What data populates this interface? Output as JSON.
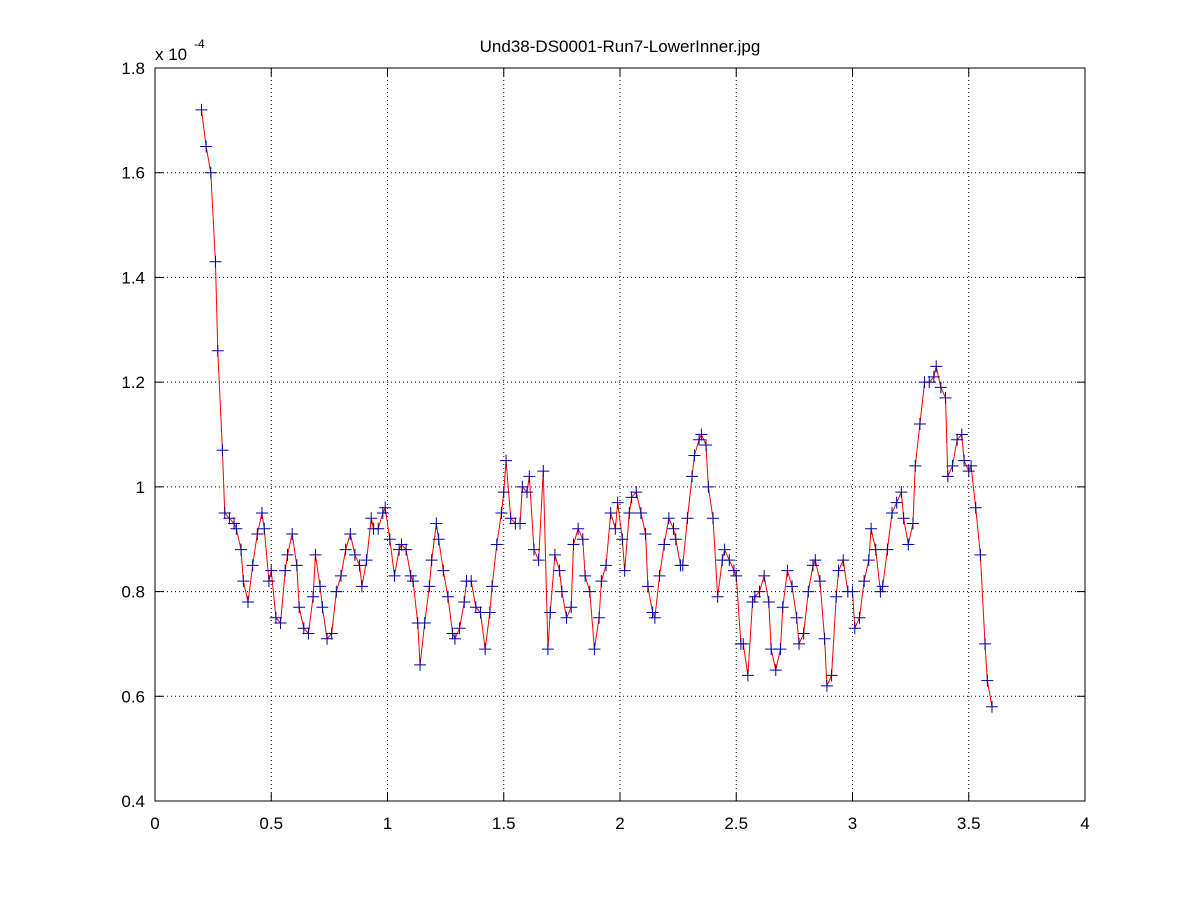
{
  "chart_data": {
    "type": "line",
    "title": "Und38-DS0001-Run7-LowerInner.jpg",
    "y_multiplier": "x 10",
    "y_multiplier_exponent": "-4",
    "xlim": [
      0,
      4
    ],
    "xticks": [
      0,
      0.5,
      1,
      1.5,
      2,
      2.5,
      3,
      3.5,
      4
    ],
    "ylim": [
      0.4,
      1.8
    ],
    "yticks": [
      0.4,
      0.6,
      0.8,
      1,
      1.2,
      1.4,
      1.6,
      1.8
    ],
    "grid": true,
    "line_color": "#ff0000",
    "marker_color": "#0000a0",
    "marker": "+",
    "x": [
      0.2,
      0.22,
      0.24,
      0.26,
      0.27,
      0.29,
      0.3,
      0.32,
      0.34,
      0.35,
      0.37,
      0.38,
      0.4,
      0.42,
      0.44,
      0.46,
      0.47,
      0.49,
      0.5,
      0.52,
      0.54,
      0.56,
      0.57,
      0.59,
      0.61,
      0.62,
      0.64,
      0.66,
      0.68,
      0.69,
      0.71,
      0.72,
      0.74,
      0.76,
      0.78,
      0.8,
      0.82,
      0.84,
      0.86,
      0.88,
      0.89,
      0.91,
      0.93,
      0.94,
      0.96,
      0.98,
      0.99,
      1.01,
      1.03,
      1.05,
      1.06,
      1.08,
      1.1,
      1.11,
      1.13,
      1.14,
      1.16,
      1.18,
      1.19,
      1.21,
      1.22,
      1.24,
      1.26,
      1.28,
      1.29,
      1.31,
      1.33,
      1.34,
      1.36,
      1.38,
      1.4,
      1.42,
      1.44,
      1.45,
      1.47,
      1.49,
      1.5,
      1.51,
      1.53,
      1.55,
      1.57,
      1.58,
      1.6,
      1.61,
      1.63,
      1.65,
      1.67,
      1.69,
      1.7,
      1.72,
      1.74,
      1.75,
      1.77,
      1.79,
      1.8,
      1.82,
      1.84,
      1.85,
      1.87,
      1.89,
      1.91,
      1.92,
      1.94,
      1.96,
      1.98,
      1.99,
      2.01,
      2.02,
      2.04,
      2.05,
      2.07,
      2.09,
      2.11,
      2.12,
      2.14,
      2.15,
      2.17,
      2.19,
      2.21,
      2.23,
      2.24,
      2.26,
      2.27,
      2.29,
      2.31,
      2.32,
      2.34,
      2.35,
      2.37,
      2.38,
      2.4,
      2.42,
      2.44,
      2.45,
      2.47,
      2.49,
      2.5,
      2.52,
      2.53,
      2.55,
      2.57,
      2.58,
      2.6,
      2.62,
      2.64,
      2.65,
      2.67,
      2.69,
      2.7,
      2.72,
      2.74,
      2.76,
      2.77,
      2.79,
      2.81,
      2.83,
      2.84,
      2.86,
      2.88,
      2.89,
      2.91,
      2.93,
      2.94,
      2.96,
      2.98,
      3.0,
      3.01,
      3.03,
      3.05,
      3.07,
      3.08,
      3.1,
      3.12,
      3.13,
      3.15,
      3.17,
      3.19,
      3.21,
      3.22,
      3.24,
      3.26,
      3.27,
      3.29,
      3.31,
      3.33,
      3.35,
      3.36,
      3.38,
      3.4,
      3.41,
      3.43,
      3.45,
      3.47,
      3.48,
      3.5,
      3.51,
      3.53,
      3.55,
      3.57,
      3.58,
      3.6
    ],
    "values": [
      1.72,
      1.65,
      1.6,
      1.43,
      1.26,
      1.07,
      0.95,
      0.94,
      0.93,
      0.92,
      0.88,
      0.82,
      0.78,
      0.85,
      0.91,
      0.95,
      0.92,
      0.82,
      0.84,
      0.75,
      0.74,
      0.84,
      0.87,
      0.91,
      0.85,
      0.77,
      0.73,
      0.72,
      0.79,
      0.87,
      0.81,
      0.77,
      0.71,
      0.72,
      0.8,
      0.83,
      0.88,
      0.91,
      0.87,
      0.85,
      0.81,
      0.86,
      0.94,
      0.92,
      0.92,
      0.95,
      0.96,
      0.9,
      0.83,
      0.88,
      0.89,
      0.88,
      0.83,
      0.82,
      0.74,
      0.66,
      0.74,
      0.81,
      0.86,
      0.93,
      0.9,
      0.84,
      0.79,
      0.72,
      0.71,
      0.73,
      0.78,
      0.82,
      0.82,
      0.77,
      0.76,
      0.69,
      0.76,
      0.81,
      0.89,
      0.95,
      0.99,
      1.05,
      0.94,
      0.93,
      0.93,
      1.0,
      0.99,
      1.02,
      0.88,
      0.86,
      1.03,
      0.69,
      0.76,
      0.87,
      0.84,
      0.8,
      0.75,
      0.77,
      0.89,
      0.92,
      0.9,
      0.83,
      0.8,
      0.69,
      0.75,
      0.82,
      0.85,
      0.95,
      0.92,
      0.97,
      0.9,
      0.84,
      0.95,
      0.98,
      0.99,
      0.95,
      0.91,
      0.81,
      0.76,
      0.75,
      0.83,
      0.89,
      0.94,
      0.92,
      0.9,
      0.85,
      0.85,
      0.94,
      1.02,
      1.06,
      1.09,
      1.1,
      1.08,
      1.0,
      0.94,
      0.79,
      0.86,
      0.88,
      0.86,
      0.84,
      0.83,
      0.7,
      0.7,
      0.64,
      0.78,
      0.79,
      0.8,
      0.83,
      0.78,
      0.69,
      0.65,
      0.69,
      0.77,
      0.84,
      0.81,
      0.75,
      0.7,
      0.72,
      0.8,
      0.85,
      0.86,
      0.82,
      0.71,
      0.62,
      0.64,
      0.79,
      0.84,
      0.86,
      0.8,
      0.8,
      0.73,
      0.75,
      0.82,
      0.86,
      0.92,
      0.88,
      0.8,
      0.81,
      0.88,
      0.95,
      0.97,
      0.99,
      0.94,
      0.89,
      0.93,
      1.04,
      1.12,
      1.2,
      1.2,
      1.21,
      1.23,
      1.19,
      1.17,
      1.02,
      1.04,
      1.09,
      1.1,
      1.05,
      1.03,
      1.04,
      0.96,
      0.87,
      0.7,
      0.63,
      0.58
    ]
  }
}
